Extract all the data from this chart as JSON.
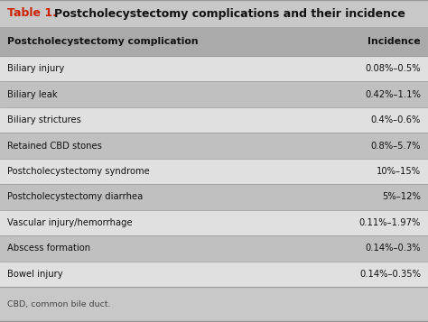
{
  "title_prefix": "Table 1.",
  "title_text": "Postcholecystectomy complications and their incidence",
  "col1_header": "Postcholecystectomy complication",
  "col2_header": "Incidence",
  "rows": [
    [
      "Biliary injury",
      "0.08%–0.5%"
    ],
    [
      "Biliary leak",
      "0.42%–1.1%"
    ],
    [
      "Biliary strictures",
      "0.4%–0.6%"
    ],
    [
      "Retained CBD stones",
      "0.8%–5.7%"
    ],
    [
      "Postcholecystectomy syndrome",
      "10%–15%"
    ],
    [
      "Postcholecystectomy diarrhea",
      "5%–12%"
    ],
    [
      "Vascular injury/hemorrhage",
      "0.11%–1.97%"
    ],
    [
      "Abscess formation",
      "0.14%–0.3%"
    ],
    [
      "Bowel injury",
      "0.14%–0.35%"
    ]
  ],
  "footnote": "CBD, common bile duct.",
  "bg_color": "#ffffff",
  "header_row_bg": "#aaaaaa",
  "row_bg_dark": "#c0c0c0",
  "row_bg_light": "#e0e0e0",
  "title_bg": "#c8c8c8",
  "footnote_bg": "#c8c8c8",
  "title_prefix_color": "#cc2200",
  "title_text_color": "#111111",
  "header_text_color": "#111111",
  "body_text_color": "#111111",
  "footnote_text_color": "#444444",
  "border_color": "#999999",
  "figsize": [
    4.74,
    3.57
  ],
  "dpi": 100
}
